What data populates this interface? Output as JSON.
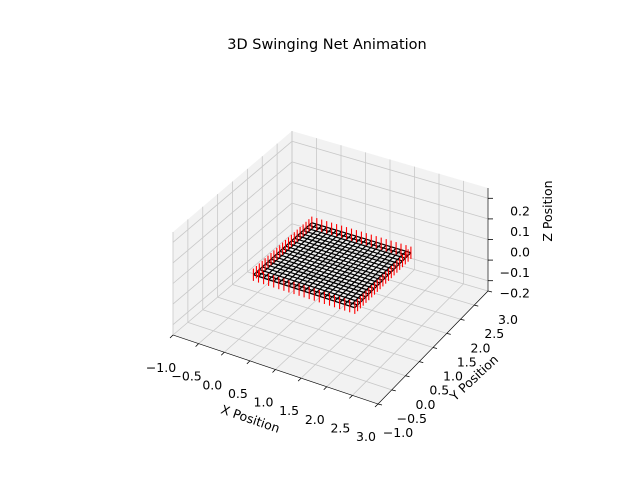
{
  "chart_data": {
    "type": "3d-surface",
    "title": "3D Swinging Net Animation",
    "xlabel": "X Position",
    "ylabel": "Y Position",
    "zlabel": "Z Position",
    "xlim": [
      -1.0,
      3.0
    ],
    "ylim": [
      -1.0,
      3.0
    ],
    "zlim": [
      -0.25,
      0.25
    ],
    "xticks": [
      -1.0,
      -0.5,
      0.0,
      0.5,
      1.0,
      1.5,
      2.0,
      2.5,
      3.0
    ],
    "yticks": [
      -1.0,
      -0.5,
      0.0,
      0.5,
      1.0,
      1.5,
      2.0,
      2.5,
      3.0
    ],
    "zticks": [
      -0.2,
      -0.1,
      0.0,
      0.1,
      0.2
    ],
    "xtick_labels": [
      "−1.0",
      "−0.5",
      "0.0",
      "0.5",
      "1.0",
      "1.5",
      "2.0",
      "2.5",
      "3.0"
    ],
    "ytick_labels": [
      "−1.0",
      "−0.5",
      "0.0",
      "0.5",
      "1.0",
      "1.5",
      "2.0",
      "2.5",
      "3.0"
    ],
    "ztick_labels": [
      "−0.2",
      "−0.1",
      "0.0",
      "0.1",
      "0.2"
    ],
    "grid": true,
    "net": {
      "x_range": [
        0.0,
        2.0
      ],
      "y_range": [
        0.0,
        2.0
      ],
      "z": 0.0,
      "lines_per_direction": 21,
      "line_color": "#000000",
      "vector_color": "#ff0000",
      "vector_half_length_z": 0.03
    },
    "colors": {
      "pane": "#f2f2f2",
      "grid": "#c8c8c8"
    }
  }
}
